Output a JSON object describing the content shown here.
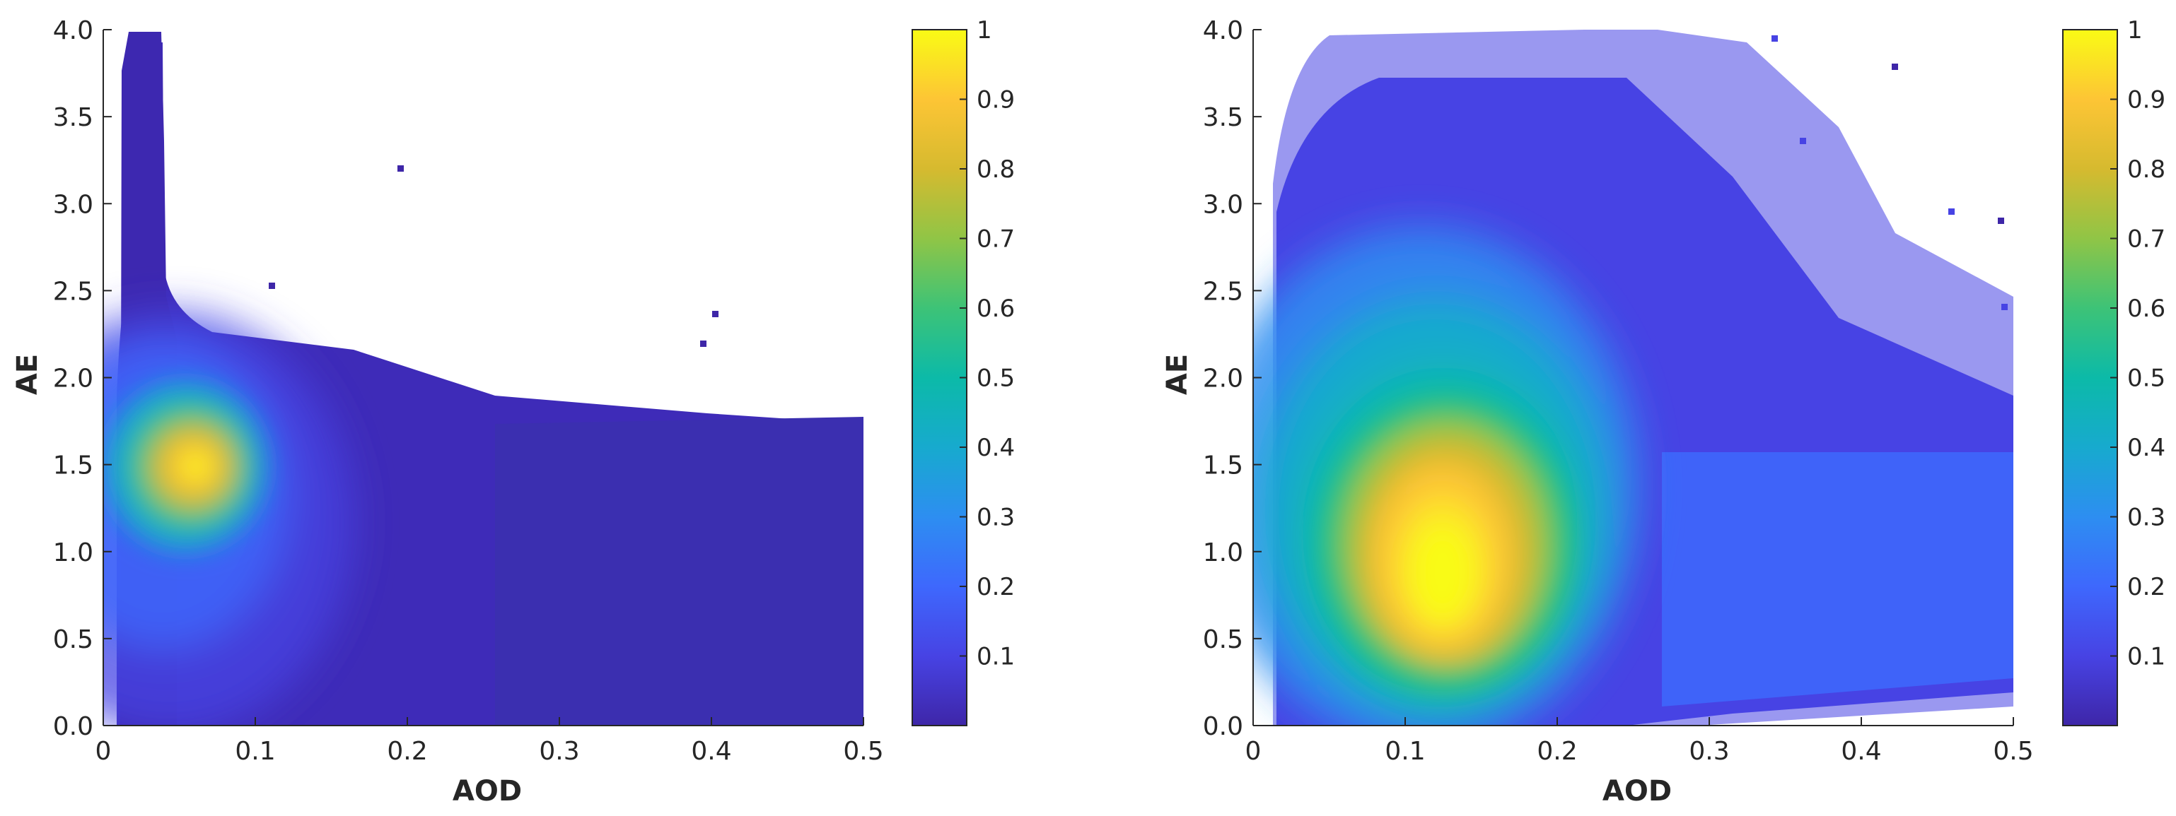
{
  "chart_data": [
    {
      "type": "scatter",
      "xlabel": "AOD",
      "ylabel": "AE",
      "xlim": [
        0,
        0.5
      ],
      "ylim": [
        0,
        4
      ],
      "xticks": [
        "0",
        "0.1",
        "0.2",
        "0.3",
        "0.4",
        "0.5"
      ],
      "yticks": [
        "0.0",
        "0.5",
        "1.0",
        "1.5",
        "2.0",
        "2.5",
        "3.0",
        "3.5",
        "4.0"
      ],
      "colorbar": {
        "ticks": [
          "0.1",
          "0.2",
          "0.3",
          "0.4",
          "0.5",
          "0.6",
          "0.7",
          "0.8",
          "0.9",
          "1"
        ],
        "range": [
          0,
          1
        ]
      },
      "color_encoding": "normalized point density",
      "density_peak": {
        "x": 0.06,
        "y": 1.5
      },
      "grid": false,
      "colormap": [
        "#3e26a8",
        "#4743e4",
        "#3e68fd",
        "#2d8ef1",
        "#17aace",
        "#0cbaa8",
        "#3dc377",
        "#90c546",
        "#d6ba2f",
        "#fdc535",
        "#f9fb15"
      ]
    },
    {
      "type": "scatter",
      "xlabel": "AOD",
      "ylabel": "AE",
      "xlim": [
        0,
        0.5
      ],
      "ylim": [
        0,
        4
      ],
      "xticks": [
        "0",
        "0.1",
        "0.2",
        "0.3",
        "0.4",
        "0.5"
      ],
      "yticks": [
        "0.0",
        "0.5",
        "1.0",
        "1.5",
        "2.0",
        "2.5",
        "3.0",
        "3.5",
        "4.0"
      ],
      "colorbar": {
        "ticks": [
          "0.1",
          "0.2",
          "0.3",
          "0.4",
          "0.5",
          "0.6",
          "0.7",
          "0.8",
          "0.9",
          "1"
        ],
        "range": [
          0,
          1
        ]
      },
      "color_encoding": "normalized point density",
      "density_peak": {
        "x": 0.12,
        "y": 1.0
      },
      "grid": false,
      "colormap": [
        "#3e26a8",
        "#4743e4",
        "#3e68fd",
        "#2d8ef1",
        "#17aace",
        "#0cbaa8",
        "#3dc377",
        "#90c546",
        "#d6ba2f",
        "#fdc535",
        "#f9fb15"
      ]
    }
  ]
}
